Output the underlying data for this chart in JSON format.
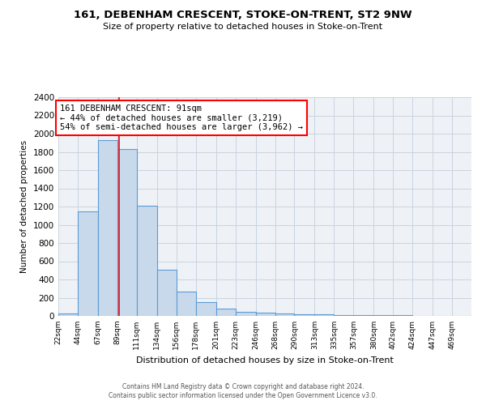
{
  "title": "161, DEBENHAM CRESCENT, STOKE-ON-TRENT, ST2 9NW",
  "subtitle": "Size of property relative to detached houses in Stoke-on-Trent",
  "xlabel": "Distribution of detached houses by size in Stoke-on-Trent",
  "ylabel": "Number of detached properties",
  "bar_heights": [
    25,
    1150,
    1930,
    1830,
    1210,
    510,
    265,
    155,
    80,
    45,
    35,
    25,
    15,
    20,
    12,
    8,
    5,
    5,
    3,
    2,
    2
  ],
  "bin_edges": [
    22,
    44,
    67,
    89,
    111,
    134,
    156,
    178,
    201,
    223,
    246,
    268,
    290,
    313,
    335,
    357,
    380,
    402,
    424,
    447,
    469
  ],
  "tick_labels": [
    "22sqm",
    "44sqm",
    "67sqm",
    "89sqm",
    "111sqm",
    "134sqm",
    "156sqm",
    "178sqm",
    "201sqm",
    "223sqm",
    "246sqm",
    "268sqm",
    "290sqm",
    "313sqm",
    "335sqm",
    "357sqm",
    "380sqm",
    "402sqm",
    "424sqm",
    "447sqm",
    "469sqm"
  ],
  "bar_color": "#c8d9eb",
  "bar_edge_color": "#5b9bd5",
  "red_line_x": 91,
  "annotation_line1": "161 DEBENHAM CRESCENT: 91sqm",
  "annotation_line2": "← 44% of detached houses are smaller (3,219)",
  "annotation_line3": "54% of semi-detached houses are larger (3,962) →",
  "ylim": [
    0,
    2400
  ],
  "yticks": [
    0,
    200,
    400,
    600,
    800,
    1000,
    1200,
    1400,
    1600,
    1800,
    2000,
    2200,
    2400
  ],
  "grid_color": "#c8d4e0",
  "plot_bg_color": "#eef2f7",
  "footer_line1": "Contains HM Land Registry data © Crown copyright and database right 2024.",
  "footer_line2": "Contains public sector information licensed under the Open Government Licence v3.0."
}
